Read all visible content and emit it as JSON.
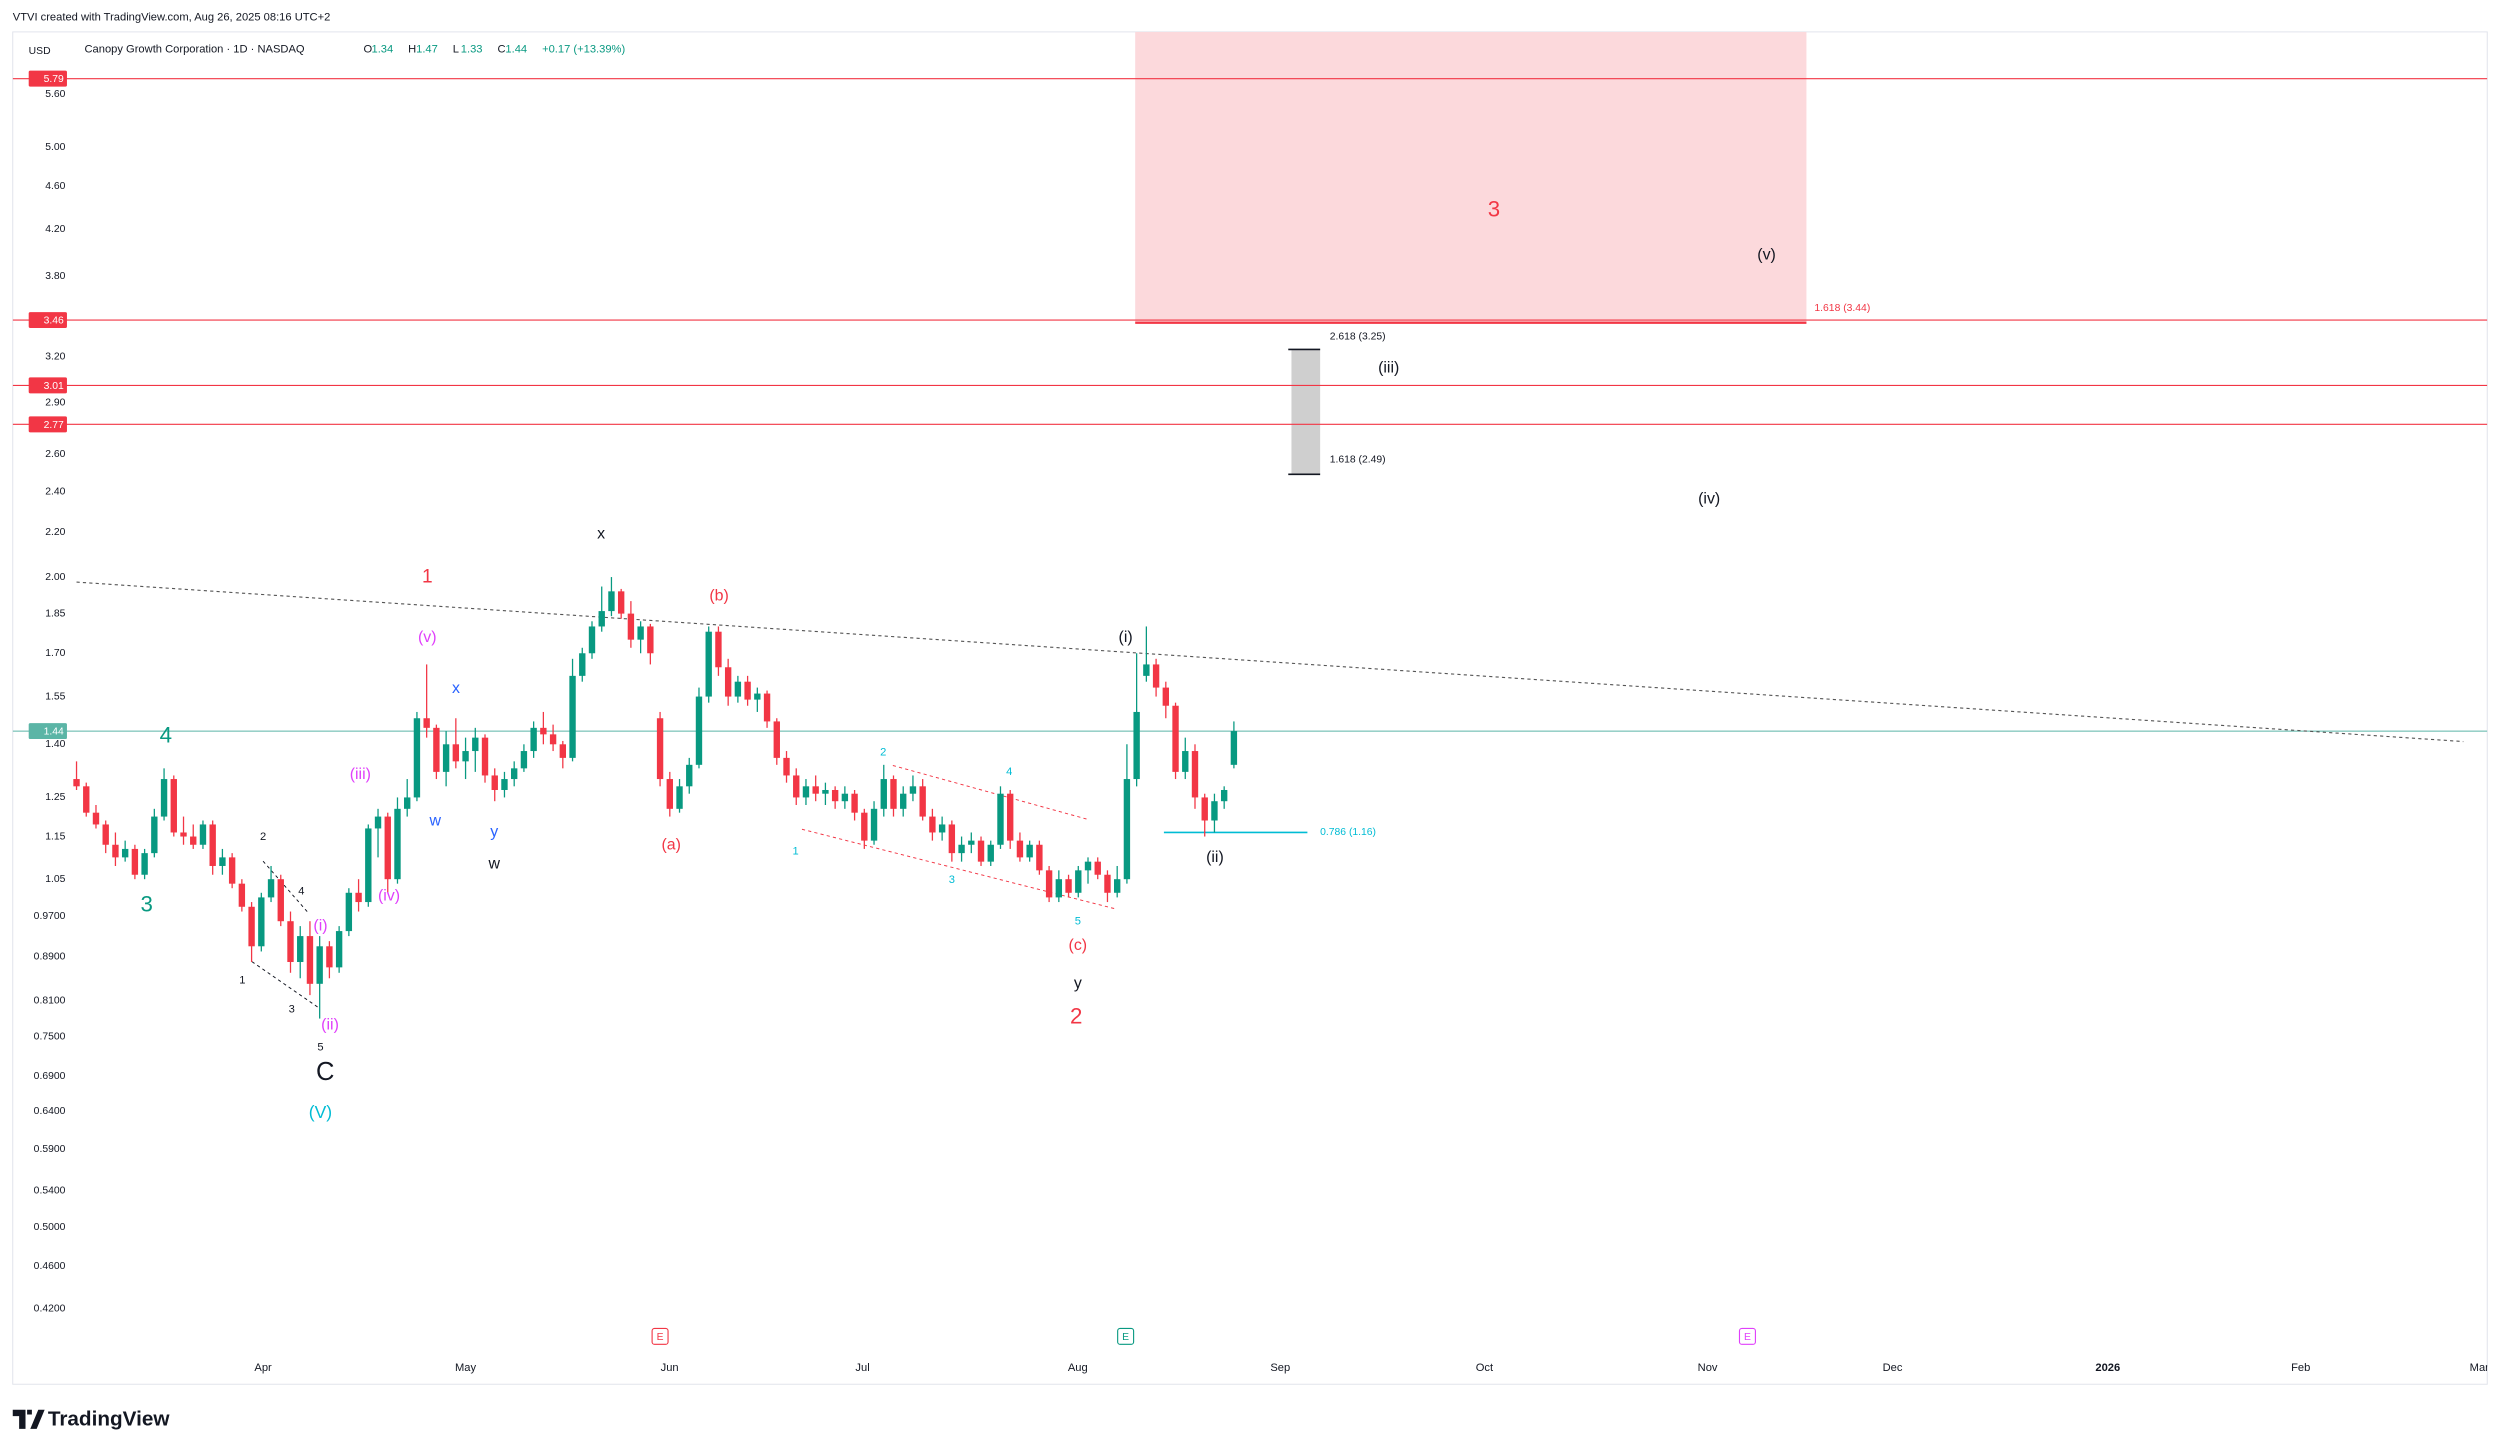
{
  "chart_data": {
    "type": "candlestick",
    "log": true,
    "grid": false,
    "header": {
      "attribution": "VTVI created with TradingView.com, Aug 26, 2025 08:16 UTC+2",
      "currency": "USD",
      "symbol": "Canopy Growth Corporation · 1D · NASDAQ",
      "ohlc": [
        {
          "label": "O",
          "value": 1.34
        },
        {
          "label": "H",
          "value": 1.47
        },
        {
          "label": "L",
          "value": 1.33
        },
        {
          "label": "C",
          "value": 1.44
        }
      ],
      "change": "+0.17 (+13.39%)"
    },
    "up_color": "#089981",
    "down_color": "#f23645",
    "ylim": [
      0.3576,
      6.397
    ],
    "yticks": [
      {
        "value": 5.6,
        "label": "5.60"
      },
      {
        "value": 5.0,
        "label": "5.00"
      },
      {
        "value": 4.6,
        "label": "4.60"
      },
      {
        "value": 4.2,
        "label": "4.20"
      },
      {
        "value": 3.8,
        "label": "3.80"
      },
      {
        "value": 3.2,
        "label": "3.20"
      },
      {
        "value": 2.9,
        "label": "2.90"
      },
      {
        "value": 2.6,
        "label": "2.60"
      },
      {
        "value": 2.4,
        "label": "2.40"
      },
      {
        "value": 2.2,
        "label": "2.20"
      },
      {
        "value": 2.0,
        "label": "2.00"
      },
      1.85,
      {
        "value": 1.7,
        "label": "1.70"
      },
      1.55,
      {
        "value": 1.4,
        "label": "1.40"
      },
      1.25,
      1.15,
      1.05,
      {
        "value": 0.97,
        "label": "0.9700"
      },
      {
        "value": 0.89,
        "label": "0.8900"
      },
      {
        "value": 0.81,
        "label": "0.8100"
      },
      {
        "value": 0.75,
        "label": "0.7500"
      },
      {
        "value": 0.69,
        "label": "0.6900"
      },
      {
        "value": 0.64,
        "label": "0.6400"
      },
      {
        "value": 0.59,
        "label": "0.5900"
      },
      {
        "value": 0.54,
        "label": "0.5400"
      },
      {
        "value": 0.5,
        "label": "0.5000"
      },
      {
        "value": 0.46,
        "label": "0.4600"
      },
      {
        "value": 0.42,
        "label": "0.4200"
      }
    ],
    "x_labels": [
      "Apr",
      "May",
      "Jun",
      "Jul",
      "Aug",
      "Sep",
      "Oct",
      "Nov",
      "Dec",
      "2026",
      "Feb",
      "Mar"
    ],
    "candles": [
      [
        1.3,
        1.35,
        1.27,
        1.28
      ],
      [
        1.28,
        1.29,
        1.2,
        1.21
      ],
      [
        1.21,
        1.23,
        1.17,
        1.18
      ],
      [
        1.18,
        1.19,
        1.11,
        1.13
      ],
      [
        1.13,
        1.16,
        1.08,
        1.1
      ],
      [
        1.1,
        1.14,
        1.09,
        1.12
      ],
      [
        1.12,
        1.13,
        1.05,
        1.06
      ],
      [
        1.06,
        1.12,
        1.05,
        1.11
      ],
      [
        1.11,
        1.22,
        1.1,
        1.2
      ],
      [
        1.2,
        1.33,
        1.19,
        1.3
      ],
      [
        1.3,
        1.31,
        1.15,
        1.16
      ],
      [
        1.16,
        1.2,
        1.13,
        1.15
      ],
      [
        1.15,
        1.18,
        1.12,
        1.13
      ],
      [
        1.13,
        1.19,
        1.12,
        1.18
      ],
      [
        1.18,
        1.19,
        1.06,
        1.08
      ],
      [
        1.08,
        1.12,
        1.06,
        1.1
      ],
      [
        1.1,
        1.11,
        1.03,
        1.04
      ],
      [
        1.04,
        1.05,
        0.98,
        0.99
      ],
      [
        0.99,
        1.0,
        0.88,
        0.91
      ],
      [
        0.91,
        1.02,
        0.9,
        1.01
      ],
      [
        1.01,
        1.08,
        1.0,
        1.05
      ],
      [
        1.05,
        1.06,
        0.95,
        0.96
      ],
      [
        0.96,
        0.98,
        0.86,
        0.88
      ],
      [
        0.88,
        0.95,
        0.85,
        0.93
      ],
      [
        0.93,
        0.96,
        0.82,
        0.84
      ],
      [
        0.84,
        0.93,
        0.78,
        0.91
      ],
      [
        0.91,
        0.92,
        0.85,
        0.87
      ],
      [
        0.87,
        0.95,
        0.86,
        0.94
      ],
      [
        0.94,
        1.03,
        0.93,
        1.02
      ],
      [
        1.02,
        1.05,
        0.98,
        1.0
      ],
      [
        1.0,
        1.18,
        0.99,
        1.17
      ],
      [
        1.17,
        1.22,
        1.1,
        1.2
      ],
      [
        1.2,
        1.21,
        1.02,
        1.05
      ],
      [
        1.05,
        1.25,
        1.04,
        1.22
      ],
      [
        1.22,
        1.3,
        1.2,
        1.25
      ],
      [
        1.25,
        1.5,
        1.24,
        1.48
      ],
      [
        1.48,
        1.66,
        1.42,
        1.45
      ],
      [
        1.45,
        1.46,
        1.3,
        1.32
      ],
      [
        1.32,
        1.44,
        1.28,
        1.4
      ],
      [
        1.4,
        1.48,
        1.33,
        1.35
      ],
      [
        1.35,
        1.42,
        1.3,
        1.38
      ],
      [
        1.38,
        1.45,
        1.32,
        1.42
      ],
      [
        1.42,
        1.43,
        1.29,
        1.31
      ],
      [
        1.31,
        1.33,
        1.24,
        1.27
      ],
      [
        1.27,
        1.32,
        1.25,
        1.3
      ],
      [
        1.3,
        1.35,
        1.28,
        1.33
      ],
      [
        1.33,
        1.4,
        1.32,
        1.38
      ],
      [
        1.38,
        1.47,
        1.36,
        1.45
      ],
      [
        1.45,
        1.5,
        1.4,
        1.43
      ],
      [
        1.43,
        1.46,
        1.38,
        1.4
      ],
      [
        1.4,
        1.41,
        1.33,
        1.36
      ],
      [
        1.36,
        1.68,
        1.35,
        1.62
      ],
      [
        1.62,
        1.72,
        1.6,
        1.7
      ],
      [
        1.7,
        1.82,
        1.68,
        1.8
      ],
      [
        1.8,
        1.96,
        1.78,
        1.86
      ],
      [
        1.86,
        2.0,
        1.84,
        1.94
      ],
      [
        1.94,
        1.95,
        1.83,
        1.85
      ],
      [
        1.85,
        1.9,
        1.72,
        1.75
      ],
      [
        1.75,
        1.82,
        1.7,
        1.8
      ],
      [
        1.8,
        1.81,
        1.66,
        1.7
      ],
      [
        1.48,
        1.5,
        1.28,
        1.3
      ],
      [
        1.3,
        1.32,
        1.2,
        1.22
      ],
      [
        1.22,
        1.3,
        1.21,
        1.28
      ],
      [
        1.28,
        1.36,
        1.26,
        1.34
      ],
      [
        1.34,
        1.58,
        1.33,
        1.55
      ],
      [
        1.55,
        1.8,
        1.53,
        1.78
      ],
      [
        1.78,
        1.8,
        1.62,
        1.65
      ],
      [
        1.65,
        1.68,
        1.52,
        1.55
      ],
      [
        1.55,
        1.62,
        1.53,
        1.6
      ],
      [
        1.6,
        1.62,
        1.52,
        1.54
      ],
      [
        1.54,
        1.58,
        1.5,
        1.56
      ],
      [
        1.56,
        1.57,
        1.45,
        1.47
      ],
      [
        1.47,
        1.48,
        1.34,
        1.36
      ],
      [
        1.36,
        1.38,
        1.29,
        1.31
      ],
      [
        1.31,
        1.33,
        1.23,
        1.25
      ],
      [
        1.25,
        1.3,
        1.23,
        1.28
      ],
      [
        1.28,
        1.31,
        1.24,
        1.26
      ],
      [
        1.26,
        1.29,
        1.23,
        1.27
      ],
      [
        1.27,
        1.28,
        1.22,
        1.24
      ],
      [
        1.24,
        1.28,
        1.22,
        1.26
      ],
      [
        1.26,
        1.27,
        1.19,
        1.21
      ],
      [
        1.21,
        1.22,
        1.12,
        1.14
      ],
      [
        1.14,
        1.24,
        1.13,
        1.22
      ],
      [
        1.22,
        1.34,
        1.2,
        1.3
      ],
      [
        1.3,
        1.31,
        1.2,
        1.22
      ],
      [
        1.22,
        1.28,
        1.2,
        1.26
      ],
      [
        1.26,
        1.31,
        1.24,
        1.28
      ],
      [
        1.28,
        1.3,
        1.19,
        1.2
      ],
      [
        1.2,
        1.22,
        1.14,
        1.16
      ],
      [
        1.16,
        1.2,
        1.14,
        1.18
      ],
      [
        1.18,
        1.19,
        1.09,
        1.11
      ],
      [
        1.11,
        1.15,
        1.09,
        1.13
      ],
      [
        1.13,
        1.16,
        1.11,
        1.14
      ],
      [
        1.14,
        1.15,
        1.08,
        1.09
      ],
      [
        1.09,
        1.14,
        1.08,
        1.13
      ],
      [
        1.13,
        1.28,
        1.12,
        1.26
      ],
      [
        1.26,
        1.27,
        1.12,
        1.14
      ],
      [
        1.14,
        1.16,
        1.09,
        1.1
      ],
      [
        1.1,
        1.14,
        1.09,
        1.13
      ],
      [
        1.13,
        1.14,
        1.06,
        1.07
      ],
      [
        1.07,
        1.08,
        1.0,
        1.01
      ],
      [
        1.01,
        1.07,
        1.0,
        1.05
      ],
      [
        1.05,
        1.06,
        1.01,
        1.02
      ],
      [
        1.02,
        1.08,
        1.01,
        1.07
      ],
      [
        1.07,
        1.1,
        1.04,
        1.09
      ],
      [
        1.09,
        1.1,
        1.05,
        1.06
      ],
      [
        1.06,
        1.07,
        1.0,
        1.02
      ],
      [
        1.02,
        1.08,
        1.01,
        1.05
      ],
      [
        1.05,
        1.4,
        1.04,
        1.3
      ],
      [
        1.3,
        1.7,
        1.28,
        1.5
      ],
      [
        1.62,
        1.8,
        1.6,
        1.66
      ],
      [
        1.66,
        1.68,
        1.55,
        1.58
      ],
      [
        1.58,
        1.6,
        1.48,
        1.52
      ],
      [
        1.52,
        1.53,
        1.3,
        1.32
      ],
      [
        1.32,
        1.42,
        1.3,
        1.38
      ],
      [
        1.38,
        1.4,
        1.22,
        1.25
      ],
      [
        1.25,
        1.26,
        1.15,
        1.19
      ],
      [
        1.19,
        1.26,
        1.16,
        1.24
      ],
      [
        1.24,
        1.28,
        1.22,
        1.27
      ],
      [
        1.34,
        1.47,
        1.33,
        1.44
      ]
    ],
    "price_levels": [
      {
        "value": 5.79,
        "color": "#f23645"
      },
      {
        "value": 3.46,
        "color": "#f23645"
      },
      {
        "value": 3.01,
        "color": "#f23645"
      },
      {
        "value": 2.77,
        "color": "#f23645"
      }
    ],
    "last_price_color": "#5bb5a6",
    "fib_levels": [
      {
        "label": "1.618 (3.44)",
        "value": 3.44,
        "color": "#f23645"
      },
      {
        "label": "2.618 (3.25)",
        "value": 3.25,
        "color": "#131722"
      },
      {
        "label": "1.618 (2.49)",
        "value": 2.49,
        "color": "#131722"
      },
      {
        "label": "0.786 (1.16)",
        "value": 1.16,
        "color": "#00bcd4"
      }
    ],
    "annotations": [
      {
        "text": "3",
        "color": "#089981"
      },
      {
        "text": "4",
        "color": "#089981"
      },
      {
        "text": "C",
        "color": "#131722"
      },
      {
        "text": "(V)",
        "color": "#00bcd4"
      },
      {
        "text": "5",
        "color": "#131722"
      },
      {
        "text": "(ii)",
        "color": "#e040fb"
      },
      {
        "text": "(i)",
        "color": "#e040fb"
      },
      {
        "text": "1",
        "color": "#131722"
      },
      {
        "text": "2",
        "color": "#131722"
      },
      {
        "text": "3",
        "color": "#131722"
      },
      {
        "text": "4",
        "color": "#131722"
      },
      {
        "text": "(iii)",
        "color": "#e040fb"
      },
      {
        "text": "(iv)",
        "color": "#e040fb"
      },
      {
        "text": "(v)",
        "color": "#e040fb"
      },
      {
        "text": "1",
        "color": "#f23645"
      },
      {
        "text": "w",
        "color": "#2962ff"
      },
      {
        "text": "x",
        "color": "#2962ff"
      },
      {
        "text": "y",
        "color": "#2962ff"
      },
      {
        "text": "w",
        "color": "#131722"
      },
      {
        "text": "x",
        "color": "#131722"
      },
      {
        "text": "(b)",
        "color": "#f23645"
      },
      {
        "text": "(a)",
        "color": "#f23645"
      },
      {
        "text": "1",
        "color": "#00bcd4"
      },
      {
        "text": "2",
        "color": "#00bcd4"
      },
      {
        "text": "3",
        "color": "#00bcd4"
      },
      {
        "text": "4",
        "color": "#00bcd4"
      },
      {
        "text": "5",
        "color": "#00bcd4"
      },
      {
        "text": "(c)",
        "color": "#f23645"
      },
      {
        "text": "y",
        "color": "#131722"
      },
      {
        "text": "2",
        "color": "#f23645"
      },
      {
        "text": "(i)",
        "color": "#131722"
      },
      {
        "text": "(ii)",
        "color": "#131722"
      },
      {
        "text": "(iii)",
        "color": "#131722"
      },
      {
        "text": "(iv)",
        "color": "#131722"
      },
      {
        "text": "(v)",
        "color": "#131722"
      },
      {
        "text": "3",
        "color": "#f23645"
      }
    ],
    "earnings": [
      {
        "label": "E",
        "color": "#f23645"
      },
      {
        "label": "E",
        "color": "#089981"
      },
      {
        "label": "E",
        "color": "#e040fb"
      }
    ],
    "brand": "TradingView"
  }
}
